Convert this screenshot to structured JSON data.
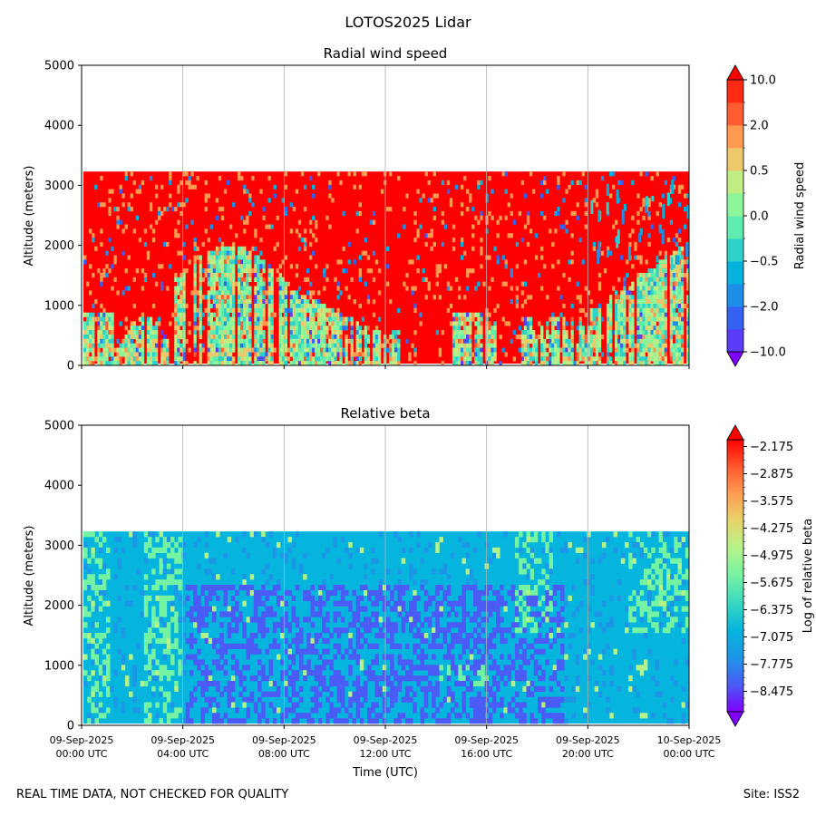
{
  "figure_title": "LOTOS2025 Lidar",
  "footer": {
    "left": "REAL TIME DATA, NOT CHECKED FOR QUALITY",
    "right": "Site: ISS2"
  },
  "colors": {
    "rainbow": [
      "#8000ff",
      "#4a5cf5",
      "#1d96e7",
      "#05b5dd",
      "#38d8c0",
      "#74f3a3",
      "#b4f38a",
      "#e6d56a",
      "#ff9e52",
      "#ff5a2e",
      "#ff0000"
    ],
    "grid": "#b0b0b0",
    "background": "#ffffff"
  },
  "chart_data": [
    {
      "type": "heatmap",
      "title": "Radial wind speed",
      "xlabel": "",
      "ylabel": "Altitude (meters)",
      "ylim": [
        0,
        5000
      ],
      "y_ticks": [
        0,
        1000,
        2000,
        3000,
        4000,
        5000
      ],
      "xlim_hours": [
        0,
        24
      ],
      "x_tick_hours": [
        0,
        4,
        8,
        12,
        16,
        20,
        24
      ],
      "data_top_altitude": 3230,
      "colorbar": {
        "label": "Radial wind speed",
        "levels": [
          "-10.0",
          "",
          "-2.0",
          "",
          "-0.5",
          "",
          "0.0",
          "",
          "0.5",
          "",
          "2.0",
          "",
          "10.0"
        ],
        "tick_labels": [
          "10.0",
          "2.0",
          "0.5",
          "0.0",
          "−0.5",
          "−2.0",
          "−10.0"
        ],
        "extend": "both",
        "colors": [
          "#8000ff",
          "#5a3cf9",
          "#3562f3",
          "#1e8fe8",
          "#05b2de",
          "#2ed2c8",
          "#5eecb0",
          "#8ef69a",
          "#c0ed84",
          "#ecc96a",
          "#ff9a50",
          "#ff5c32",
          "#ff2a14",
          "#ff0000"
        ]
      }
    },
    {
      "type": "heatmap",
      "title": "Relative beta",
      "xlabel": "Time (UTC)",
      "ylabel": "Altitude (meters)",
      "ylim": [
        0,
        5000
      ],
      "y_ticks": [
        0,
        1000,
        2000,
        3000,
        4000,
        5000
      ],
      "xlim_hours": [
        0,
        24
      ],
      "x_tick_hours": [
        0,
        4,
        8,
        12,
        16,
        20,
        24
      ],
      "x_tick_labels": [
        [
          "09-Sep-2025",
          "00:00 UTC"
        ],
        [
          "09-Sep-2025",
          "04:00 UTC"
        ],
        [
          "09-Sep-2025",
          "08:00 UTC"
        ],
        [
          "09-Sep-2025",
          "12:00 UTC"
        ],
        [
          "09-Sep-2025",
          "16:00 UTC"
        ],
        [
          "09-Sep-2025",
          "20:00 UTC"
        ],
        [
          "10-Sep-2025",
          "00:00 UTC"
        ]
      ],
      "data_top_altitude": 3230,
      "colorbar": {
        "label": "Log of relative beta",
        "tick_labels": [
          "−2.175",
          "−2.875",
          "−3.575",
          "−4.275",
          "−4.975",
          "−5.675",
          "−6.375",
          "−7.075",
          "−7.775",
          "−8.475"
        ],
        "range": [
          -9.0,
          -2.0
        ],
        "extend": "both"
      }
    }
  ]
}
